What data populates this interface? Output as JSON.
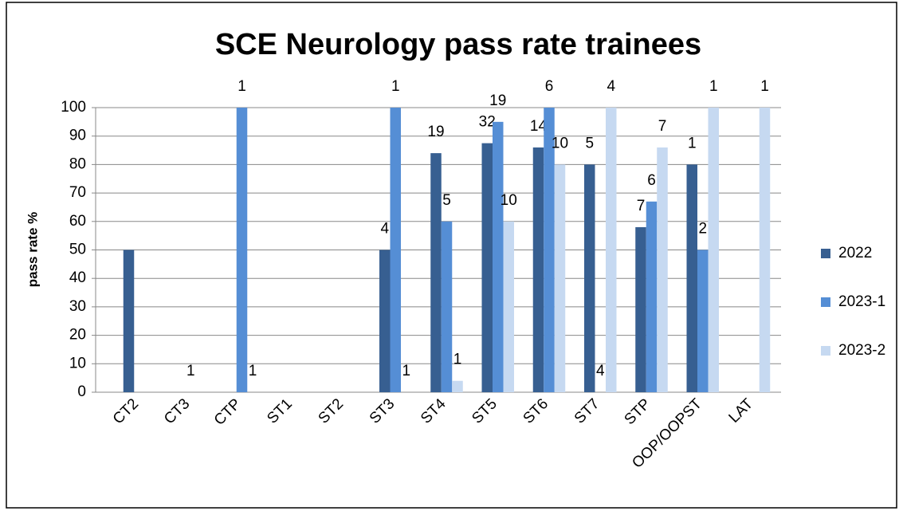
{
  "chart_data": {
    "type": "bar",
    "title": "SCE Neurology pass rate trainees",
    "ylabel": "pass rate %",
    "categories": [
      "CT2",
      "CT3",
      "CTP",
      "ST1",
      "ST2",
      "ST3",
      "ST4",
      "ST5",
      "ST6",
      "ST7",
      "STP",
      "OOP/OOPST",
      "LAT"
    ],
    "series": [
      {
        "name": "2022",
        "color": "#375f91",
        "values": [
          50,
          null,
          null,
          null,
          null,
          50,
          84,
          87.5,
          86,
          80,
          58,
          80,
          null
        ],
        "counts": [
          null,
          null,
          null,
          null,
          null,
          4,
          19,
          32,
          14,
          5,
          7,
          1,
          null
        ]
      },
      {
        "name": "2023-1",
        "color": "#558ed5",
        "values": [
          null,
          0,
          100,
          null,
          null,
          100,
          60,
          95,
          100,
          0,
          67,
          50,
          null
        ],
        "counts": [
          null,
          1,
          1,
          null,
          null,
          1,
          5,
          19,
          6,
          4,
          6,
          2,
          null
        ]
      },
      {
        "name": "2023-2",
        "color": "#c6d9f1",
        "values": [
          null,
          null,
          0,
          null,
          null,
          0,
          4,
          60,
          80,
          100,
          86,
          100,
          100
        ],
        "counts": [
          null,
          null,
          1,
          null,
          null,
          1,
          1,
          10,
          10,
          4,
          7,
          1,
          1
        ]
      }
    ],
    "ylim": [
      0,
      100
    ],
    "yticks": [
      0,
      10,
      20,
      30,
      40,
      50,
      60,
      70,
      80,
      90,
      100
    ],
    "grid": true,
    "legend": "right"
  }
}
